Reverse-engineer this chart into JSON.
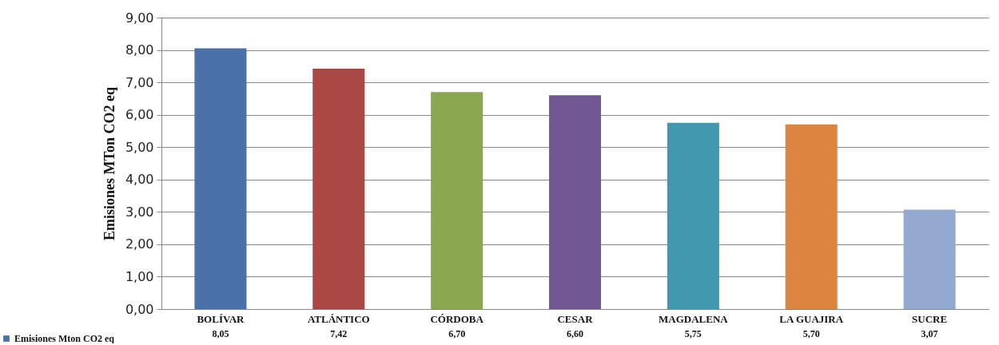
{
  "chart_data": {
    "type": "bar",
    "ylabel": "Emisiones MTon CO2 eq",
    "categories": [
      "BOLÍVAR",
      "ATLÁNTICO",
      "CÓRDOBA",
      "CESAR",
      "MAGDALENA",
      "LA GUAJIRA",
      "SUCRE"
    ],
    "series": [
      {
        "name": "Emisiones Mton CO2 eq",
        "colors": [
          "#4a71a8",
          "#a94744",
          "#8aa84f",
          "#725893",
          "#4198af",
          "#db8540",
          "#93a9cf"
        ],
        "values": [
          8.05,
          7.42,
          6.7,
          6.6,
          5.75,
          5.7,
          3.07
        ],
        "value_labels": [
          "8,05",
          "7,42",
          "6,70",
          "6,60",
          "5,75",
          "5,70",
          "3,07"
        ]
      }
    ],
    "ylim": [
      0,
      9
    ],
    "yticks": [
      {
        "value": 0,
        "label": "0,00"
      },
      {
        "value": 1,
        "label": "1,00"
      },
      {
        "value": 2,
        "label": "2,00"
      },
      {
        "value": 3,
        "label": "3,00"
      },
      {
        "value": 4,
        "label": "4,00"
      },
      {
        "value": 5,
        "label": "5,00"
      },
      {
        "value": 6,
        "label": "6,00"
      },
      {
        "value": 7,
        "label": "7,00"
      },
      {
        "value": 8,
        "label": "8,00"
      },
      {
        "value": 9,
        "label": "9,00"
      }
    ],
    "grid": "y",
    "legend": "bottom left"
  }
}
